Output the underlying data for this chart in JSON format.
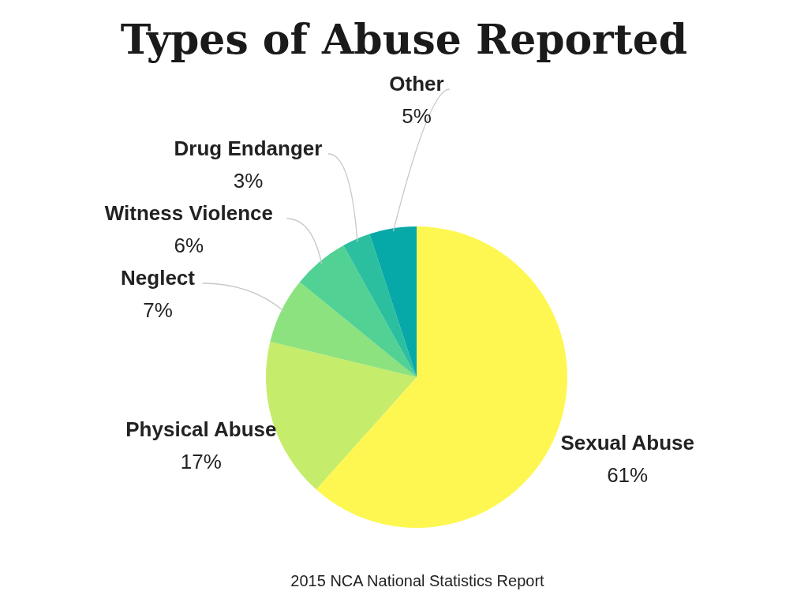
{
  "chart_data": {
    "type": "pie",
    "title": "Types of Abuse Reported",
    "categories": [
      "Sexual Abuse",
      "Physical Abuse",
      "Neglect",
      "Witness Violence",
      "Drug Endanger",
      "Other"
    ],
    "values": [
      61,
      17,
      7,
      6,
      3,
      5
    ],
    "colors": [
      "#fef751",
      "#c5ec6a",
      "#8ce27e",
      "#52d195",
      "#2bbf9f",
      "#07a8a8"
    ],
    "value_labels": [
      "61%",
      "17%",
      "7%",
      "6%",
      "3%",
      "5%"
    ],
    "annotations": [
      "2015 NCA National Statistics Report"
    ]
  }
}
